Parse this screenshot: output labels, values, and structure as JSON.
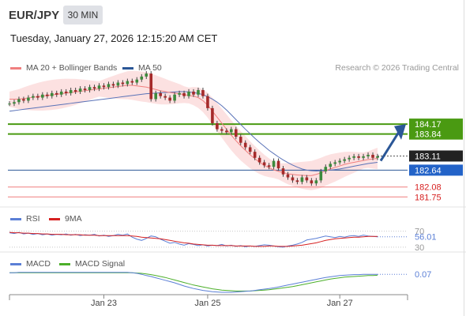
{
  "header": {
    "symbol": "EUR/JPY",
    "interval": "30 MIN",
    "datetime": "Tuesday, January 27, 2026 12:15:20 AM CET",
    "research": "Research © 2026 Trading Central"
  },
  "legend": {
    "ma20": {
      "label": "MA 20 + Bollinger Bands",
      "color": "#f07f7f"
    },
    "ma50": {
      "label": "MA 50",
      "color": "#2b5797"
    }
  },
  "rsi_legend": {
    "rsi": {
      "label": "RSI",
      "color": "#5b7fd6"
    },
    "ma9": {
      "label": "9MA",
      "color": "#d62020"
    }
  },
  "macd_legend": {
    "macd": {
      "label": "MACD",
      "color": "#5b7fd6"
    },
    "signal": {
      "label": "MACD Signal",
      "color": "#4caf2a"
    }
  },
  "chart_data": [
    {
      "type": "line",
      "panel": "price",
      "ylim": [
        181.6,
        185.8
      ],
      "price_labels": [
        {
          "text": "184.17",
          "value": 184.17,
          "style": "green-box"
        },
        {
          "text": "183.84",
          "value": 183.84,
          "style": "green-box"
        },
        {
          "text": "183.11",
          "value": 183.11,
          "style": "dark-box"
        },
        {
          "text": "182.64",
          "value": 182.64,
          "style": "blue-box"
        },
        {
          "text": "182.08",
          "value": 182.08,
          "style": "red-text"
        },
        {
          "text": "181.75",
          "value": 181.75,
          "style": "red-text"
        }
      ],
      "levels": [
        {
          "value": 184.17,
          "color": "#4a9a12"
        },
        {
          "value": 183.84,
          "color": "#4a9a12"
        },
        {
          "value": 182.64,
          "color": "#2b5797"
        },
        {
          "value": 182.08,
          "color": "#f07f7f"
        },
        {
          "value": 181.75,
          "color": "#f07f7f"
        }
      ],
      "close": [
        184.85,
        184.9,
        185.0,
        184.95,
        185.05,
        185.1,
        185.05,
        185.15,
        185.1,
        185.2,
        185.15,
        185.25,
        185.2,
        185.3,
        185.25,
        185.35,
        185.3,
        185.4,
        185.35,
        185.45,
        185.4,
        185.5,
        185.45,
        185.55,
        185.5,
        185.6,
        185.55,
        185.65,
        185.75,
        185.85,
        185.0,
        185.2,
        185.1,
        185.05,
        184.95,
        185.15,
        185.2,
        185.1,
        185.25,
        185.15,
        185.3,
        185.1,
        184.7,
        184.2,
        184.0,
        183.95,
        183.9,
        184.0,
        183.75,
        183.55,
        183.4,
        183.25,
        183.05,
        182.9,
        182.8,
        182.75,
        182.95,
        182.7,
        182.5,
        182.4,
        182.3,
        182.25,
        182.4,
        182.3,
        182.2,
        182.3,
        182.6,
        182.75,
        182.85,
        182.9,
        182.95,
        183.0,
        183.05,
        183.1,
        183.05,
        183.1,
        183.15,
        183.05,
        183.1
      ],
      "ma20": [
        185.0,
        185.0,
        185.0,
        185.02,
        185.04,
        185.06,
        185.08,
        185.1,
        185.12,
        185.14,
        185.16,
        185.18,
        185.2,
        185.22,
        185.24,
        185.26,
        185.28,
        185.3,
        185.32,
        185.34,
        185.36,
        185.38,
        185.4,
        185.42,
        185.44,
        185.46,
        185.46,
        185.44,
        185.42,
        185.4,
        185.36,
        185.32,
        185.28,
        185.25,
        185.22,
        185.2,
        185.18,
        185.15,
        185.12,
        185.1,
        185.05,
        184.95,
        184.8,
        184.6,
        184.4,
        184.2,
        184.0,
        183.8,
        183.62,
        183.45,
        183.3,
        183.15,
        183.02,
        182.9,
        182.8,
        182.72,
        182.65,
        182.6,
        182.56,
        182.52,
        182.5,
        182.48,
        182.47,
        182.46,
        182.46,
        182.5,
        182.55,
        182.62,
        182.68,
        182.73,
        182.78,
        182.83,
        182.87,
        182.9,
        182.93,
        182.96,
        182.99,
        183.01,
        183.03
      ],
      "ma50": [
        184.6,
        184.62,
        184.64,
        184.66,
        184.68,
        184.7,
        184.72,
        184.74,
        184.76,
        184.78,
        184.8,
        184.82,
        184.84,
        184.86,
        184.88,
        184.9,
        184.92,
        184.94,
        184.96,
        184.98,
        185.0,
        185.02,
        185.04,
        185.06,
        185.08,
        185.1,
        185.12,
        185.14,
        185.16,
        185.18,
        185.19,
        185.2,
        185.21,
        185.22,
        185.23,
        185.24,
        185.25,
        185.25,
        185.24,
        185.22,
        185.19,
        185.15,
        185.08,
        185.0,
        184.9,
        184.78,
        184.64,
        184.48,
        184.32,
        184.16,
        184.0,
        183.85,
        183.7,
        183.56,
        183.43,
        183.3,
        183.19,
        183.08,
        182.98,
        182.89,
        182.81,
        182.74,
        182.68,
        182.64,
        182.62,
        182.61,
        182.62,
        182.63,
        182.64,
        182.66,
        182.68,
        182.71,
        182.74,
        182.77,
        182.8,
        182.83,
        182.86,
        182.88,
        182.9
      ]
    },
    {
      "type": "line",
      "panel": "rsi",
      "ylim": [
        20,
        85
      ],
      "labels": [
        {
          "text": "70",
          "value": 70
        },
        {
          "text": "56.01",
          "value": 56.01
        },
        {
          "text": "30",
          "value": 30
        }
      ],
      "rsi": [
        66,
        64,
        67,
        63,
        65,
        62,
        64,
        61,
        63,
        60,
        62,
        61,
        63,
        60,
        62,
        59,
        61,
        60,
        62,
        58,
        60,
        57,
        59,
        62,
        60,
        63,
        55,
        50,
        47,
        52,
        58,
        56,
        50,
        45,
        40,
        42,
        38,
        35,
        39,
        37,
        34,
        36,
        33,
        35,
        34,
        37,
        33,
        35,
        32,
        34,
        31,
        33,
        32,
        34,
        36,
        35,
        33,
        31,
        30,
        33,
        35,
        38,
        42,
        48,
        50,
        52,
        55,
        58,
        56,
        54,
        57,
        55,
        58,
        59,
        57,
        60,
        58,
        57,
        56
      ],
      "ma9": [
        67,
        66,
        66,
        65,
        65,
        64,
        64,
        63,
        63,
        62,
        62,
        62,
        61,
        61,
        61,
        61,
        60,
        60,
        60,
        59,
        59,
        59,
        59,
        59,
        59,
        59,
        58,
        57,
        55,
        54,
        53,
        52,
        51,
        49,
        47,
        45,
        43,
        41,
        40,
        38,
        37,
        36,
        35,
        35,
        34,
        34,
        34,
        34,
        33,
        33,
        33,
        33,
        32,
        32,
        32,
        33,
        33,
        32,
        32,
        32,
        33,
        34,
        35,
        37,
        39,
        41,
        44,
        47,
        49,
        51,
        52,
        53,
        54,
        55,
        55,
        56,
        57,
        57,
        57
      ]
    },
    {
      "type": "line",
      "panel": "macd",
      "ylim": [
        -0.55,
        0.2
      ],
      "labels": [
        {
          "text": "0.07",
          "value": 0.07
        }
      ],
      "macd": [
        0.12,
        0.12,
        0.13,
        0.13,
        0.13,
        0.13,
        0.13,
        0.13,
        0.13,
        0.13,
        0.13,
        0.13,
        0.13,
        0.13,
        0.13,
        0.13,
        0.13,
        0.13,
        0.13,
        0.13,
        0.13,
        0.13,
        0.13,
        0.13,
        0.13,
        0.13,
        0.12,
        0.1,
        0.07,
        0.03,
        0.0,
        -0.04,
        -0.08,
        -0.12,
        -0.16,
        -0.2,
        -0.25,
        -0.3,
        -0.34,
        -0.38,
        -0.41,
        -0.44,
        -0.46,
        -0.48,
        -0.49,
        -0.5,
        -0.5,
        -0.5,
        -0.49,
        -0.48,
        -0.47,
        -0.46,
        -0.44,
        -0.42,
        -0.4,
        -0.38,
        -0.36,
        -0.33,
        -0.3,
        -0.27,
        -0.24,
        -0.21,
        -0.18,
        -0.15,
        -0.12,
        -0.09,
        -0.06,
        -0.03,
        -0.01,
        0.01,
        0.03,
        0.04,
        0.05,
        0.06,
        0.06,
        0.07,
        0.07,
        0.07,
        0.07
      ],
      "signal": [
        0.12,
        0.12,
        0.12,
        0.12,
        0.12,
        0.12,
        0.12,
        0.12,
        0.12,
        0.12,
        0.12,
        0.12,
        0.12,
        0.12,
        0.12,
        0.12,
        0.12,
        0.12,
        0.12,
        0.12,
        0.12,
        0.12,
        0.12,
        0.12,
        0.12,
        0.12,
        0.12,
        0.11,
        0.1,
        0.08,
        0.06,
        0.03,
        0.0,
        -0.03,
        -0.07,
        -0.11,
        -0.15,
        -0.19,
        -0.23,
        -0.27,
        -0.3,
        -0.33,
        -0.36,
        -0.39,
        -0.41,
        -0.43,
        -0.44,
        -0.45,
        -0.46,
        -0.46,
        -0.46,
        -0.46,
        -0.45,
        -0.44,
        -0.43,
        -0.42,
        -0.4,
        -0.38,
        -0.36,
        -0.34,
        -0.32,
        -0.29,
        -0.26,
        -0.23,
        -0.2,
        -0.17,
        -0.14,
        -0.11,
        -0.08,
        -0.06,
        -0.04,
        -0.02,
        -0.01,
        0.0,
        0.01,
        0.02,
        0.03,
        0.03,
        0.04
      ]
    }
  ],
  "x_axis": {
    "ticks": [
      {
        "label": "Jan 23",
        "index": 20
      },
      {
        "label": "Jan 25",
        "index": 42
      },
      {
        "label": "Jan 27",
        "index": 70
      }
    ]
  }
}
